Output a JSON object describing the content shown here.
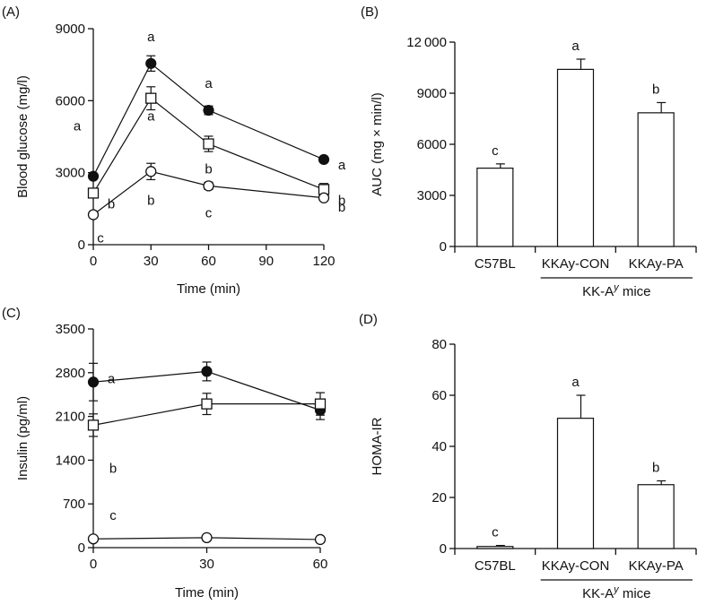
{
  "chart_data": [
    {
      "panel": "(A)",
      "type": "line",
      "xlabel": "Time (min)",
      "ylabel": "Blood glucose (mg/l)",
      "xlim": [
        0,
        120
      ],
      "ylim": [
        0,
        9000
      ],
      "xticks": [
        0,
        30,
        60,
        90,
        120
      ],
      "yticks": [
        0,
        3000,
        6000,
        9000
      ],
      "x": [
        0,
        30,
        60,
        120
      ],
      "series": [
        {
          "marker": "filled-circle",
          "values": [
            2850,
            7550,
            5600,
            3550
          ],
          "errors": [
            0,
            320,
            180,
            0
          ],
          "labels": [
            "a",
            "a",
            "a",
            "a"
          ]
        },
        {
          "marker": "open-square",
          "values": [
            2150,
            6100,
            4200,
            2300
          ],
          "errors": [
            0,
            480,
            320,
            250
          ],
          "labels": [
            "b",
            "a",
            "b",
            "b"
          ]
        },
        {
          "marker": "open-circle",
          "values": [
            1250,
            3050,
            2450,
            1950
          ],
          "errors": [
            120,
            340,
            150,
            0
          ],
          "labels": [
            "c",
            "b",
            "c",
            "b"
          ]
        }
      ]
    },
    {
      "panel": "(B)",
      "type": "bar",
      "ylabel": "AUC (mg × min/l)",
      "ylim": [
        0,
        12000
      ],
      "yticks": [
        0,
        3000,
        6000,
        9000,
        12000
      ],
      "categories": [
        "C57BL",
        "KKAy-CON",
        "KKAy-PA"
      ],
      "values": [
        4600,
        10400,
        7850
      ],
      "errors": [
        250,
        600,
        600
      ],
      "labels": [
        "c",
        "a",
        "b"
      ],
      "group_label": "KK-A",
      "group_label_sup": "y",
      "group_label_suffix": " mice"
    },
    {
      "panel": "(C)",
      "type": "line",
      "xlabel": "Time (min)",
      "ylabel": "Insulin (pg/ml)",
      "xlim": [
        0,
        60
      ],
      "ylim": [
        0,
        3500
      ],
      "xticks": [
        0,
        30,
        60
      ],
      "yticks": [
        0,
        700,
        1400,
        2100,
        2800,
        3500
      ],
      "x": [
        0,
        30,
        60
      ],
      "series": [
        {
          "marker": "filled-circle",
          "values": [
            2650,
            2820,
            2200
          ],
          "errors": [
            300,
            150,
            150
          ],
          "labels": [
            "a",
            "",
            ""
          ]
        },
        {
          "marker": "open-square",
          "values": [
            1960,
            2300,
            2300
          ],
          "errors": [
            180,
            170,
            180
          ],
          "labels": [
            "b",
            "",
            ""
          ]
        },
        {
          "marker": "open-circle",
          "values": [
            140,
            160,
            130
          ],
          "errors": [
            0,
            0,
            0
          ],
          "labels": [
            "c",
            "",
            ""
          ]
        }
      ]
    },
    {
      "panel": "(D)",
      "type": "bar",
      "ylabel": "HOMA-IR",
      "ylim": [
        0,
        80
      ],
      "yticks": [
        0,
        20,
        40,
        60,
        80
      ],
      "categories": [
        "C57BL",
        "KKAy-CON",
        "KKAy-PA"
      ],
      "values": [
        0.8,
        51,
        25
      ],
      "errors": [
        0.4,
        9,
        1.5
      ],
      "labels": [
        "c",
        "a",
        "b"
      ],
      "group_label": "KK-A",
      "group_label_sup": "y",
      "group_label_suffix": " mice"
    }
  ]
}
